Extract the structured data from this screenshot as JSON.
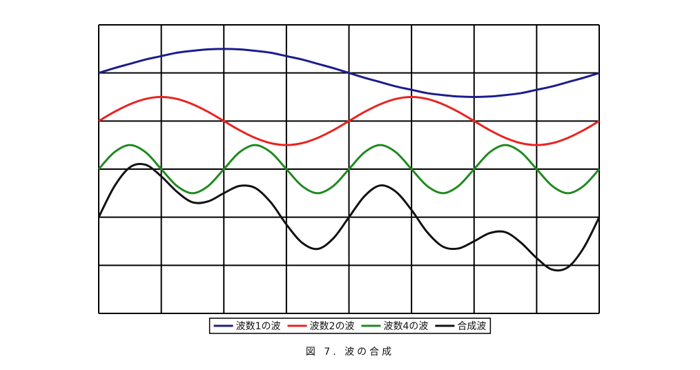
{
  "chart_data": {
    "type": "line",
    "caption": "図 7. 波の合成",
    "x": [
      0,
      0.25,
      0.5,
      0.75,
      1,
      1.25,
      1.5,
      1.75,
      2,
      2.25,
      2.5,
      2.75,
      3,
      3.25,
      3.5,
      3.75,
      4,
      4.25,
      4.5,
      4.75,
      5,
      5.25,
      5.5,
      5.75,
      6,
      6.25,
      6.5,
      6.75,
      7,
      7.25,
      7.5,
      7.75,
      8
    ],
    "xlim": [
      0,
      8
    ],
    "xticks": [
      0,
      1,
      2,
      3,
      4,
      5,
      6,
      7,
      8
    ],
    "ylim": [
      0,
      6
    ],
    "yticks": [
      0,
      1,
      2,
      3,
      4,
      5,
      6
    ],
    "grid": true,
    "legend": "bottom",
    "series": [
      {
        "name": "波数1の波",
        "color": "#1c1c8e",
        "values": [
          5,
          5.1,
          5.19,
          5.28,
          5.35,
          5.42,
          5.46,
          5.49,
          5.5,
          5.49,
          5.46,
          5.42,
          5.35,
          5.28,
          5.19,
          5.1,
          5,
          4.9,
          4.81,
          4.72,
          4.65,
          4.58,
          4.54,
          4.51,
          4.5,
          4.51,
          4.54,
          4.58,
          4.65,
          4.72,
          4.81,
          4.9,
          5
        ]
      },
      {
        "name": "波数2の波",
        "color": "#e8231f",
        "values": [
          4,
          4.19,
          4.35,
          4.46,
          4.5,
          4.46,
          4.35,
          4.19,
          4,
          3.81,
          3.65,
          3.54,
          3.5,
          3.54,
          3.65,
          3.81,
          4,
          4.19,
          4.35,
          4.46,
          4.5,
          4.46,
          4.35,
          4.19,
          4,
          3.81,
          3.65,
          3.54,
          3.5,
          3.54,
          3.65,
          3.81,
          4
        ]
      },
      {
        "name": "波数4の波",
        "color": "#1f8a1f",
        "values": [
          3,
          3.35,
          3.5,
          3.35,
          3,
          2.65,
          2.5,
          2.65,
          3,
          3.35,
          3.5,
          3.35,
          3,
          2.65,
          2.5,
          2.65,
          3,
          3.35,
          3.5,
          3.35,
          3,
          2.65,
          2.5,
          2.65,
          3,
          3.35,
          3.5,
          3.35,
          3,
          2.65,
          2.5,
          2.65,
          3
        ]
      },
      {
        "name": "合成波",
        "color": "#111111",
        "values": [
          2,
          2.64,
          3.04,
          3.09,
          2.85,
          2.53,
          2.31,
          2.33,
          2.5,
          2.65,
          2.61,
          2.31,
          1.85,
          1.47,
          1.34,
          1.56,
          2,
          2.44,
          2.66,
          2.53,
          2.15,
          1.69,
          1.39,
          1.35,
          1.5,
          1.67,
          1.69,
          1.47,
          1.15,
          0.91,
          0.96,
          1.36,
          2
        ]
      }
    ]
  }
}
